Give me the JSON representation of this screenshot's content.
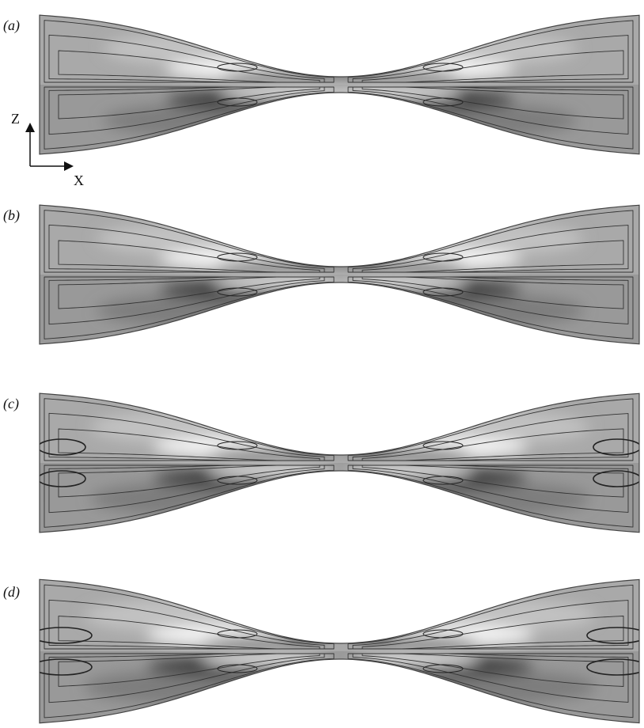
{
  "panels": [
    {
      "label": "(a)"
    },
    {
      "label": "(b)"
    },
    {
      "label": "(c)"
    },
    {
      "label": "(d)"
    }
  ],
  "axes": {
    "vertical": "Z",
    "horizontal": "X"
  }
}
